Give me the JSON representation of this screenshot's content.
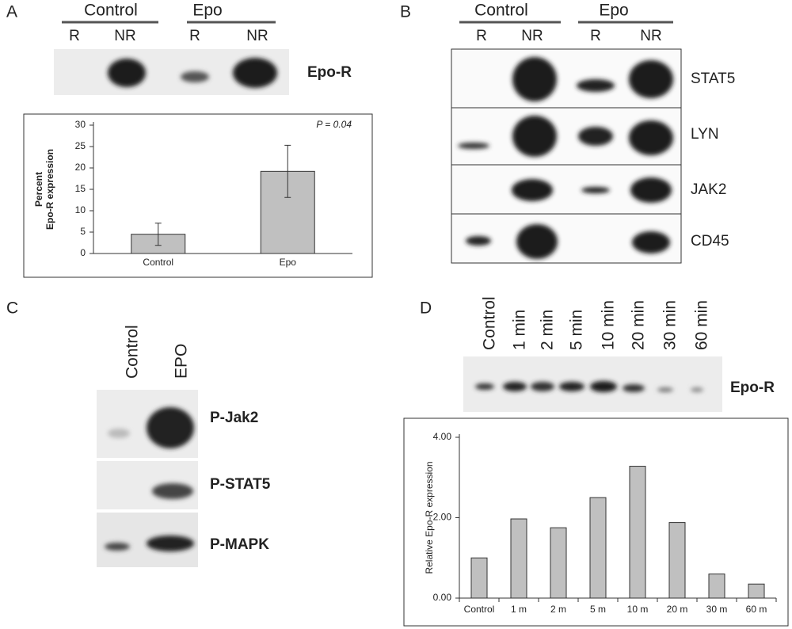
{
  "panel_labels": [
    "A",
    "B",
    "C",
    "D"
  ],
  "panel_a": {
    "groups": [
      "Control",
      "Epo"
    ],
    "lanes": [
      "R",
      "NR",
      "R",
      "NR"
    ],
    "band_label": "Epo-R"
  },
  "panel_b": {
    "groups": [
      "Control",
      "Epo"
    ],
    "lanes": [
      "R",
      "NR",
      "R",
      "NR"
    ],
    "band_labels": [
      "STAT5",
      "LYN",
      "JAK2",
      "CD45"
    ]
  },
  "panel_c": {
    "lanes": [
      "Control",
      "EPO"
    ],
    "band_labels": [
      "P-Jak2",
      "P-STAT5",
      "P-MAPK"
    ]
  },
  "panel_d": {
    "lanes": [
      "Control",
      "1 min",
      "2 min",
      "5 min",
      "10 min",
      "20 min",
      "30 min",
      "60 min"
    ],
    "band_label": "Epo-R"
  },
  "chart_data": [
    {
      "type": "bar",
      "y_label": [
        "Percent",
        "Epo-R expression"
      ],
      "annotation": "P = 0.04",
      "categories": [
        "Control",
        "Epo"
      ],
      "values": [
        4.5,
        19.2
      ],
      "errors": [
        2.6,
        6.1
      ],
      "color": "#c0c0c0",
      "ylim": [
        0,
        30
      ],
      "yticks": [
        0,
        5,
        10,
        15,
        20,
        25,
        30
      ],
      "grid": false
    },
    {
      "type": "bar",
      "y_label": [
        "Relative Epo-R expression"
      ],
      "categories": [
        "Control",
        "1 m",
        "2 m",
        "5 m",
        "10 m",
        "20 m",
        "30 m",
        "60 m"
      ],
      "values": [
        1.0,
        1.97,
        1.75,
        2.5,
        3.28,
        1.88,
        0.6,
        0.35
      ],
      "color": "#c0c0c0",
      "ylim": [
        0,
        4
      ],
      "yticks": [
        {
          "value": 0,
          "label": "0.00"
        },
        {
          "value": 2,
          "label": "2.00"
        },
        {
          "value": 4,
          "label": "4.00"
        }
      ],
      "grid": false
    }
  ]
}
